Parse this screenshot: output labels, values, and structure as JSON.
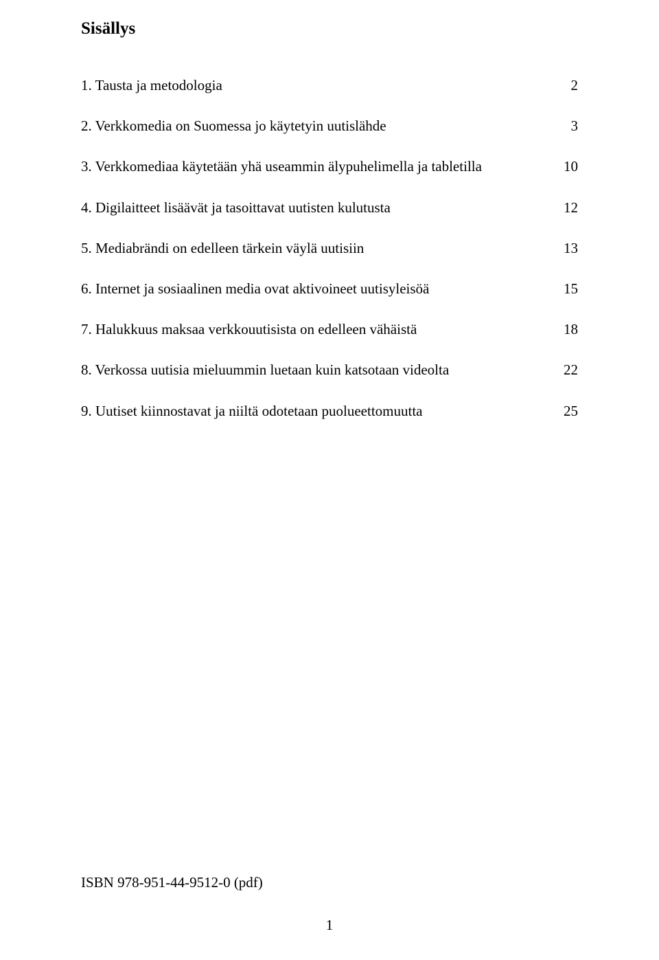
{
  "title": "Sisällys",
  "toc": [
    {
      "label": "1. Tausta ja metodologia",
      "page": "2"
    },
    {
      "label": "2. Verkkomedia on Suomessa jo käytetyin uutislähde",
      "page": "3"
    },
    {
      "label": "3. Verkkomediaa käytetään yhä useammin älypuhelimella ja tabletilla",
      "page": "10"
    },
    {
      "label": "4. Digilaitteet lisäävät ja tasoittavat uutisten kulutusta",
      "page": "12"
    },
    {
      "label": "5. Mediabrändi on edelleen tärkein väylä uutisiin",
      "page": "13"
    },
    {
      "label": "6. Internet ja sosiaalinen media ovat aktivoineet uutisyleisöä",
      "page": "15"
    },
    {
      "label": "7. Halukkuus maksaa verkkouutisista on edelleen vähäistä",
      "page": "18"
    },
    {
      "label": "8. Verkossa uutisia mieluummin luetaan kuin katsotaan videolta",
      "page": "22"
    },
    {
      "label": "9. Uutiset kiinnostavat ja niiltä odotetaan puolueettomuutta",
      "page": "25"
    }
  ],
  "isbn": "ISBN 978-951-44-9512-0 (pdf)",
  "pageNumber": "1"
}
